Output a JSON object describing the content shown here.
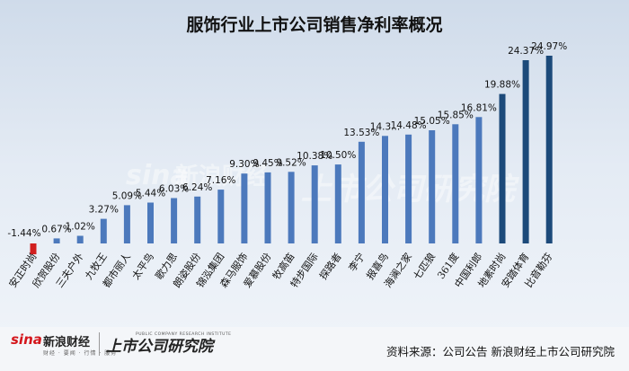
{
  "chart_data": {
    "type": "bar",
    "title": "服饰行业上市公司销售净利率概况",
    "categories": [
      "安正时尚",
      "欣贺股份",
      "三夫户外",
      "九牧王",
      "都市丽人",
      "太平鸟",
      "歌力思",
      "朗姿股份",
      "锦泓集团",
      "森马服饰",
      "爱慕股份",
      "牧高笛",
      "特步国际",
      "探路者",
      "李宁",
      "报喜鸟",
      "海澜之家",
      "七匹狼",
      "361度",
      "中国利郎",
      "地素时尚",
      "安踏体育",
      "比音勒芬"
    ],
    "values": [
      -1.44,
      0.67,
      1.02,
      3.27,
      5.09,
      5.44,
      6.03,
      6.24,
      7.16,
      9.3,
      9.45,
      9.52,
      10.38,
      10.5,
      13.53,
      14.3,
      14.48,
      15.05,
      15.85,
      16.81,
      19.88,
      24.37,
      24.97
    ],
    "value_labels": [
      "-1.44%",
      "0.67%",
      "1.02%",
      "3.27%",
      "5.09%",
      "5.44%",
      "6.03%",
      "6.24%",
      "7.16%",
      "9.30%",
      "9.45%",
      "9.52%",
      "10.38%",
      "10.50%",
      "13.53%",
      "14.3...",
      "14.48%",
      "15.05%",
      "15.85%",
      "16.81%",
      "19.88%",
      "24.37%",
      "24.97%"
    ],
    "ylim": [
      -1.44,
      24.97
    ],
    "grid": false,
    "legend": "none",
    "colors": {
      "negative": "#d11f1f",
      "positive": "#4c79bc",
      "top": "#1c4a7a"
    },
    "top_count": 3
  },
  "watermark": {
    "brand_en": "sina",
    "brand_cn": "新浪财经",
    "research": "上市公司研究院"
  },
  "footer": {
    "logo_sina": "sina",
    "logo_name": "新浪财经",
    "logo_sub": "财经 · 要闻 · 行情 · 服务",
    "logo_research": "上市公司研究院",
    "logo_research_en": "PUBLIC COMPANY RESEARCH INSTITUTE",
    "source": "资料来源：公司公告 新浪财经上市公司研究院"
  }
}
